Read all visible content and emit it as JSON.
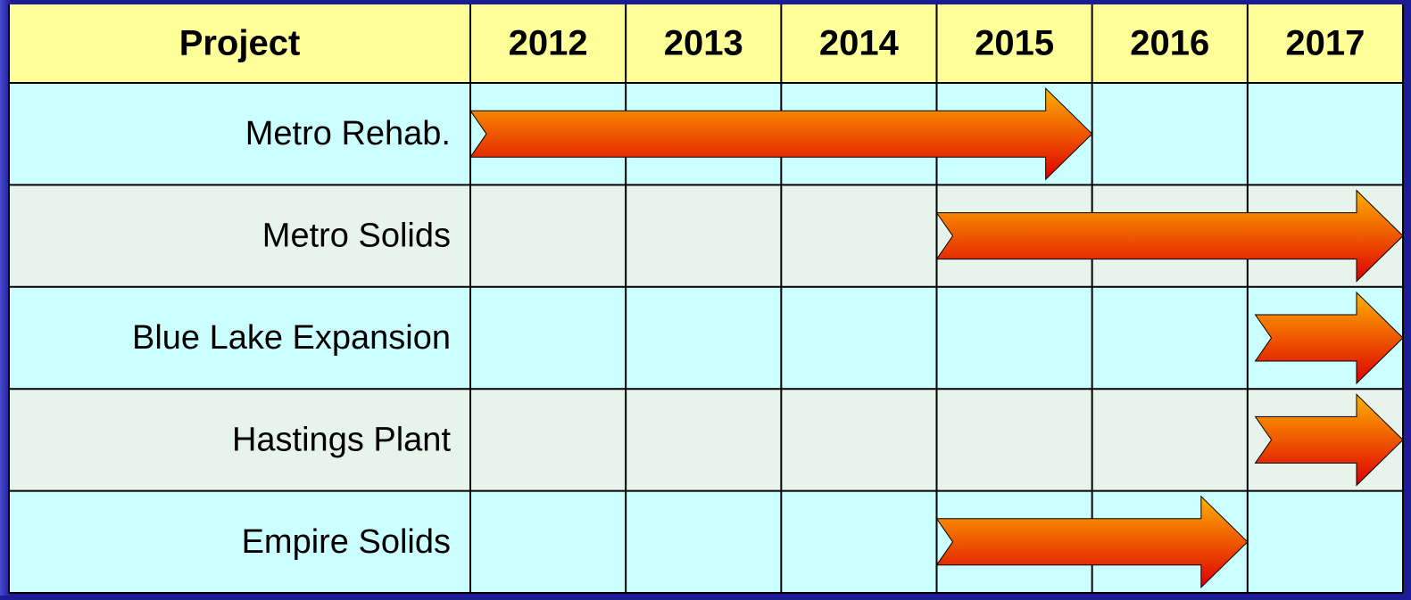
{
  "chart_data": {
    "type": "gantt",
    "row_header": "Project",
    "categories": [
      "Metro Rehab.",
      "Metro Solids",
      "Blue Lake Expansion",
      "Hastings Plant",
      "Empire Solids"
    ],
    "starts": [
      2012,
      2015,
      2017.05,
      2017.05,
      2015
    ],
    "ends": [
      2016,
      2018,
      2018,
      2018,
      2017
    ],
    "xlim": [
      2012,
      2018
    ],
    "xticks": [
      2012,
      2013,
      2014,
      2015,
      2016,
      2017
    ],
    "header_color": "#ffff99",
    "row_colors": [
      "#ccffff",
      "#e6f4ec"
    ],
    "arrow_colors": [
      "#ffb000",
      "#dd0000"
    ]
  }
}
